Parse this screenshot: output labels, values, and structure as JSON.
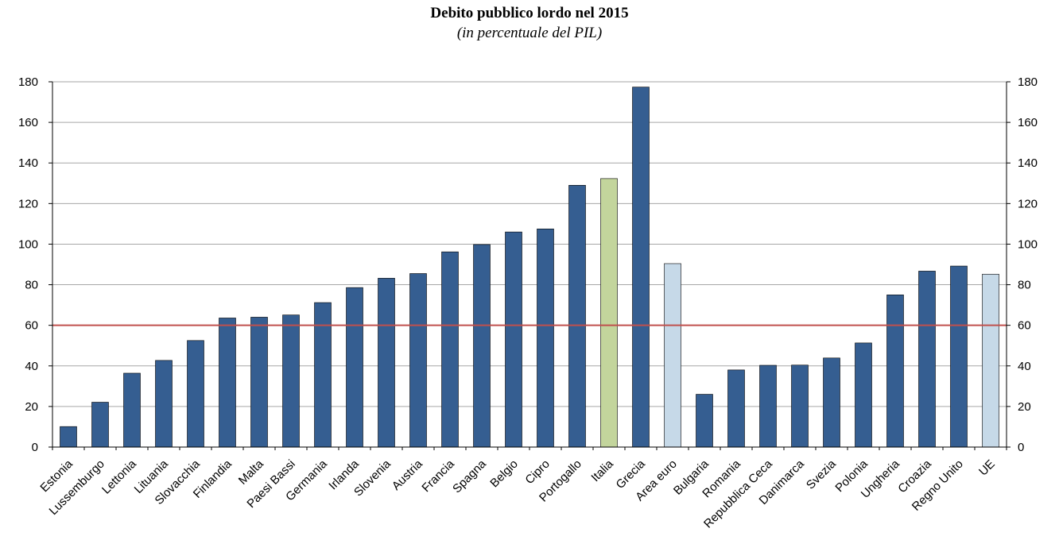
{
  "chart_data": {
    "type": "bar",
    "title": "Debito pubblico lordo nel 2015",
    "subtitle": "(in percentuale del PIL)",
    "categories": [
      "Estonia",
      "Lussemburgo",
      "Lettonia",
      "Lituania",
      "Slovacchia",
      "Finlandia",
      "Malta",
      "Paesi Bassi",
      "Germania",
      "Irlanda",
      "Slovenia",
      "Austria",
      "Francia",
      "Spagna",
      "Belgio",
      "Cipro",
      "Portogallo",
      "Italia",
      "Grecia",
      "Area euro",
      "Bulgaria",
      "Romania",
      "Repubblica Ceca",
      "Danimarca",
      "Svezia",
      "Polonia",
      "Ungheria",
      "Croazia",
      "Regno Unito",
      "UE"
    ],
    "values": [
      10.1,
      22.1,
      36.4,
      42.7,
      52.5,
      63.6,
      64.0,
      65.1,
      71.2,
      78.6,
      83.2,
      85.5,
      96.2,
      99.8,
      106.0,
      107.5,
      129.0,
      132.3,
      177.4,
      90.4,
      26.0,
      38.0,
      40.3,
      40.4,
      43.9,
      51.3,
      75.0,
      86.7,
      89.2,
      85.2
    ],
    "bar_colors": [
      "#355e91",
      "#355e91",
      "#355e91",
      "#355e91",
      "#355e91",
      "#355e91",
      "#355e91",
      "#355e91",
      "#355e91",
      "#355e91",
      "#355e91",
      "#355e91",
      "#355e91",
      "#355e91",
      "#355e91",
      "#355e91",
      "#355e91",
      "#c3d59c",
      "#355e91",
      "#c6d9e8",
      "#355e91",
      "#355e91",
      "#355e91",
      "#355e91",
      "#355e91",
      "#355e91",
      "#355e91",
      "#355e91",
      "#355e91",
      "#c6d9e8"
    ],
    "ylim": [
      0,
      180
    ],
    "yticks": [
      0,
      20,
      40,
      60,
      80,
      100,
      120,
      140,
      160,
      180
    ],
    "threshold": 60,
    "threshold_color": "#c0504d",
    "grid": true,
    "secondary_axis": "right, mirrors left",
    "gridline_color": "#a6a6a6"
  }
}
